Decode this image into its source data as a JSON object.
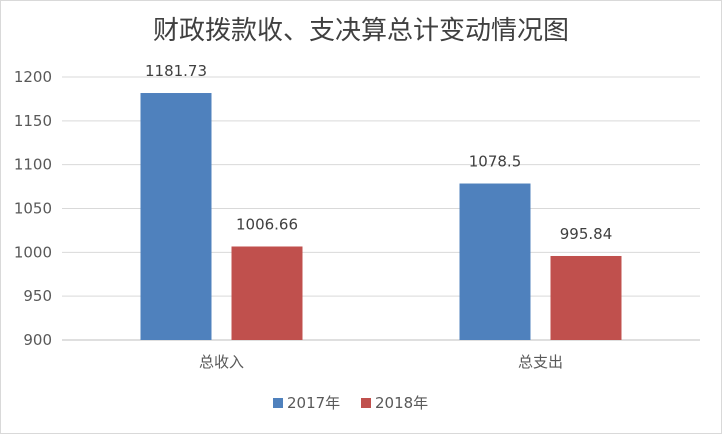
{
  "chart_data": {
    "type": "bar",
    "title": "财政拨款收、支决算总计变动情况图",
    "categories": [
      "总收入",
      "总支出"
    ],
    "series": [
      {
        "name": "2017年",
        "color": "#4f81bd",
        "values": [
          1181.73,
          1078.5
        ],
        "labels": [
          "1181.73",
          "1078.5"
        ]
      },
      {
        "name": "2018年",
        "color": "#c0504d",
        "values": [
          1006.66,
          995.84
        ],
        "labels": [
          "1006.66",
          "995.84"
        ]
      }
    ],
    "yticks": [
      900,
      950,
      1000,
      1050,
      1100,
      1150,
      1200
    ],
    "ylim": [
      900,
      1200
    ],
    "grid": true,
    "legend_position": "bottom",
    "xlabel": "",
    "ylabel": ""
  }
}
